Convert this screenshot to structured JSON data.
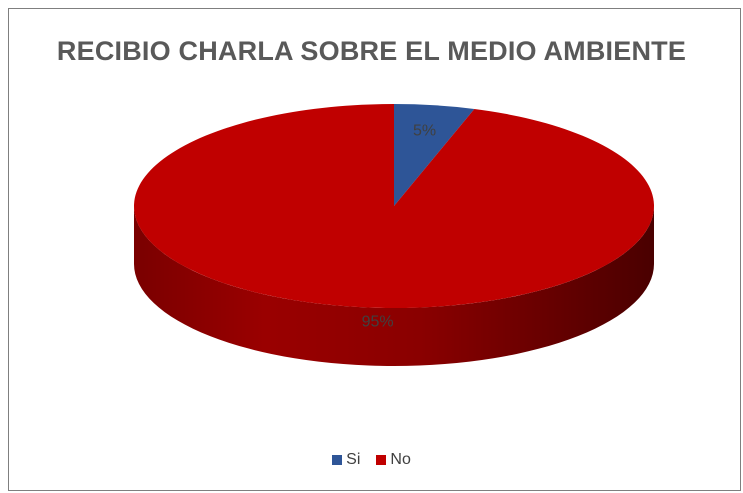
{
  "chart_data": {
    "type": "pie",
    "title": "RECIBIO CHARLA SOBRE EL MEDIO AMBIENTE",
    "categories": [
      "Si",
      "No"
    ],
    "values": [
      5,
      95
    ],
    "labels": [
      "5%",
      "95%"
    ],
    "colors": [
      "#2E5597",
      "#C00000"
    ],
    "legend_position": "bottom",
    "style": "3d"
  }
}
